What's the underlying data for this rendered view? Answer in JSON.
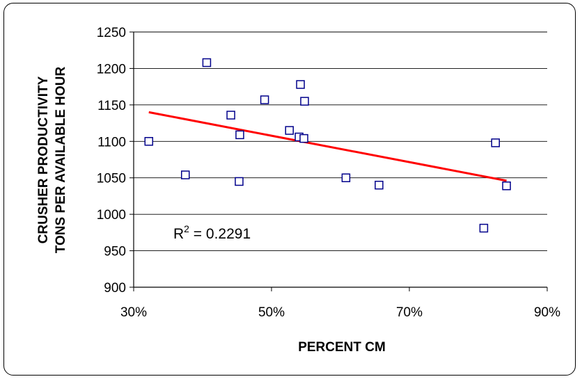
{
  "chart_data": {
    "type": "scatter",
    "ylabel_lines": [
      "CRUSHER PRODUCTIVITY",
      "TONS PER AVAILABLE HOUR"
    ],
    "xlabel": "PERCENT CM",
    "xlim": [
      30,
      90
    ],
    "ylim": [
      900,
      1250
    ],
    "x_ticks": [
      30,
      50,
      70,
      90
    ],
    "x_tick_labels": [
      "30%",
      "50%",
      "70%",
      "90%"
    ],
    "y_ticks": [
      900,
      950,
      1000,
      1050,
      1100,
      1150,
      1200,
      1250
    ],
    "y_tick_labels": [
      "900",
      "950",
      "1000",
      "1050",
      "1100",
      "1150",
      "1200",
      "1250"
    ],
    "grid": "horizontal",
    "marker_color": "#00008B",
    "trendline_color": "#FF0000",
    "points": [
      {
        "x": 32.2,
        "y": 1100
      },
      {
        "x": 37.5,
        "y": 1054
      },
      {
        "x": 40.6,
        "y": 1208
      },
      {
        "x": 44.1,
        "y": 1136
      },
      {
        "x": 45.3,
        "y": 1045
      },
      {
        "x": 45.4,
        "y": 1109
      },
      {
        "x": 49.0,
        "y": 1157
      },
      {
        "x": 52.6,
        "y": 1115
      },
      {
        "x": 54.0,
        "y": 1106
      },
      {
        "x": 54.2,
        "y": 1178
      },
      {
        "x": 54.7,
        "y": 1104
      },
      {
        "x": 54.8,
        "y": 1155
      },
      {
        "x": 60.8,
        "y": 1050
      },
      {
        "x": 65.6,
        "y": 1040
      },
      {
        "x": 80.8,
        "y": 981
      },
      {
        "x": 82.5,
        "y": 1098
      },
      {
        "x": 84.1,
        "y": 1039
      }
    ],
    "trendline": {
      "x": [
        32.2,
        84.1
      ],
      "y": [
        1140,
        1046
      ]
    },
    "annotation": {
      "base": "R",
      "superscript": "2",
      "rest": " = 0.2291"
    }
  }
}
